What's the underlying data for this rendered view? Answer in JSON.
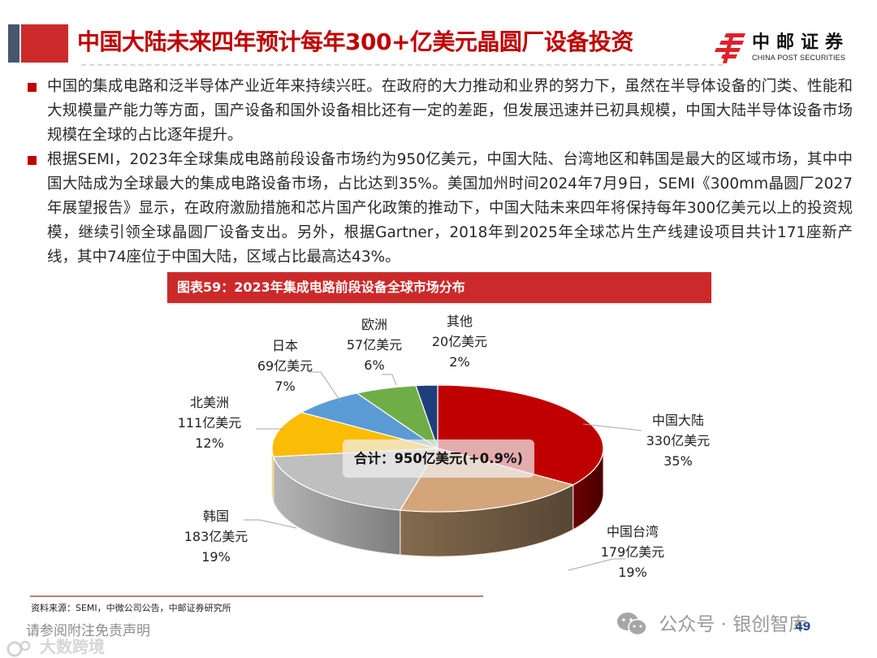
{
  "header": {
    "title": "中国大陆未来四年预计每年300+亿美元晶圆厂设备投资",
    "logo": {
      "name_cn": "中邮证券",
      "name_en": "CHINA POST SECURITIES",
      "icon": "china-post-logo-icon",
      "color": "#e0202a"
    },
    "accent_colors": {
      "dark_block": "#46566c",
      "red_block": "#cc2a2a",
      "title_text": "#c00000"
    }
  },
  "bullets": [
    {
      "text": "中国的集成电路和泛半导体产业近年来持续兴旺。在政府的大力推动和业界的努力下，虽然在半导体设备的门类、性能和大规模量产能力等方面，国产设备和国外设备相比还有一定的差距，但发展迅速并已初具规模，中国大陆半导体设备市场规模在全球的占比逐年提升。"
    },
    {
      "text": "根据SEMI，2023年全球集成电路前段设备市场约为950亿美元，中国大陆、台湾地区和韩国是最大的区域市场，其中中国大陆成为全球最大的集成电路设备市场，占比达到35%。美国加州时间2024年7月9日，SEMI《300mm晶圆厂2027年展望报告》显示，在政府激励措施和芯片国产化政策的推动下，中国大陆未来四年将保持每年300亿美元以上的投资规模，继续引领全球晶圆厂设备支出。另外，根据Gartner，2018年到2025年全球芯片生产线建设项目共计171座新产线，其中74座位于中国大陆，区域占比最高达43%。"
    }
  ],
  "figure": {
    "title": "图表59：2023年集成电路前段设备全球市场分布",
    "total_label": "合计：950亿美元(+0.9%)",
    "source": "资料来源：SEMI，中微公司公告，中邮证券研究所"
  },
  "chart_data": {
    "type": "pie",
    "style": "3d-pie",
    "title": "图表59：2023年集成电路前段设备全球市场分布",
    "unit": "亿美元",
    "total": 950,
    "total_change": "+0.9%",
    "annotation": "合计：950亿美元(+0.9%)",
    "categories": [
      "中国大陆",
      "中国台湾",
      "韩国",
      "北美洲",
      "日本",
      "欧洲",
      "其他"
    ],
    "values": [
      330,
      179,
      183,
      111,
      69,
      57,
      20
    ],
    "percentages": [
      35,
      19,
      19,
      12,
      7,
      6,
      2
    ],
    "colors": [
      "#c00000",
      "#d4a57a",
      "#bfbfbf",
      "#fbbc05",
      "#5b9bd5",
      "#70ad47",
      "#1f3f7a"
    ],
    "labels": [
      {
        "name": "中国大陆",
        "value": "330亿美元",
        "pct": "35%"
      },
      {
        "name": "中国台湾",
        "value": "179亿美元",
        "pct": "19%"
      },
      {
        "name": "韩国",
        "value": "183亿美元",
        "pct": "19%"
      },
      {
        "name": "北美洲",
        "value": "111亿美元",
        "pct": "12%"
      },
      {
        "name": "日本",
        "value": "69亿美元",
        "pct": "7%"
      },
      {
        "name": "欧洲",
        "value": "57亿美元",
        "pct": "6%"
      },
      {
        "name": "其他",
        "value": "20亿美元",
        "pct": "2%"
      }
    ],
    "legend": "none (data labels with leader lines)"
  },
  "footer": {
    "disclaimer": "请参阅附注免责声明",
    "page_number": "49",
    "watermark_right": "公众号 · 银创智库",
    "watermark_left": "大数跨境"
  }
}
